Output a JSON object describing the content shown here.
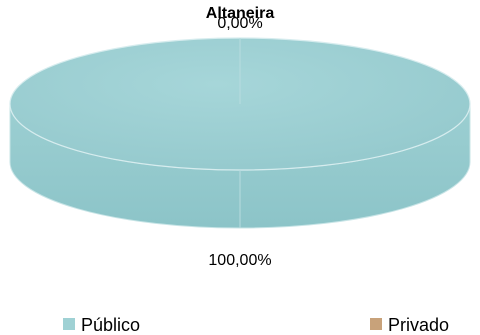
{
  "chart_data": {
    "type": "pie",
    "title": "Altaneira",
    "categories": [
      "Público",
      "Privado"
    ],
    "values": [
      100.0,
      0.0
    ],
    "data_labels": [
      "100,00%",
      "0,00%"
    ],
    "legend": {
      "placement": "bottom",
      "entries": [
        "Público",
        "Privado"
      ]
    },
    "colors": {
      "Público": "#9fd1d4",
      "Privado": "#c8a27a"
    },
    "three_d": true
  }
}
